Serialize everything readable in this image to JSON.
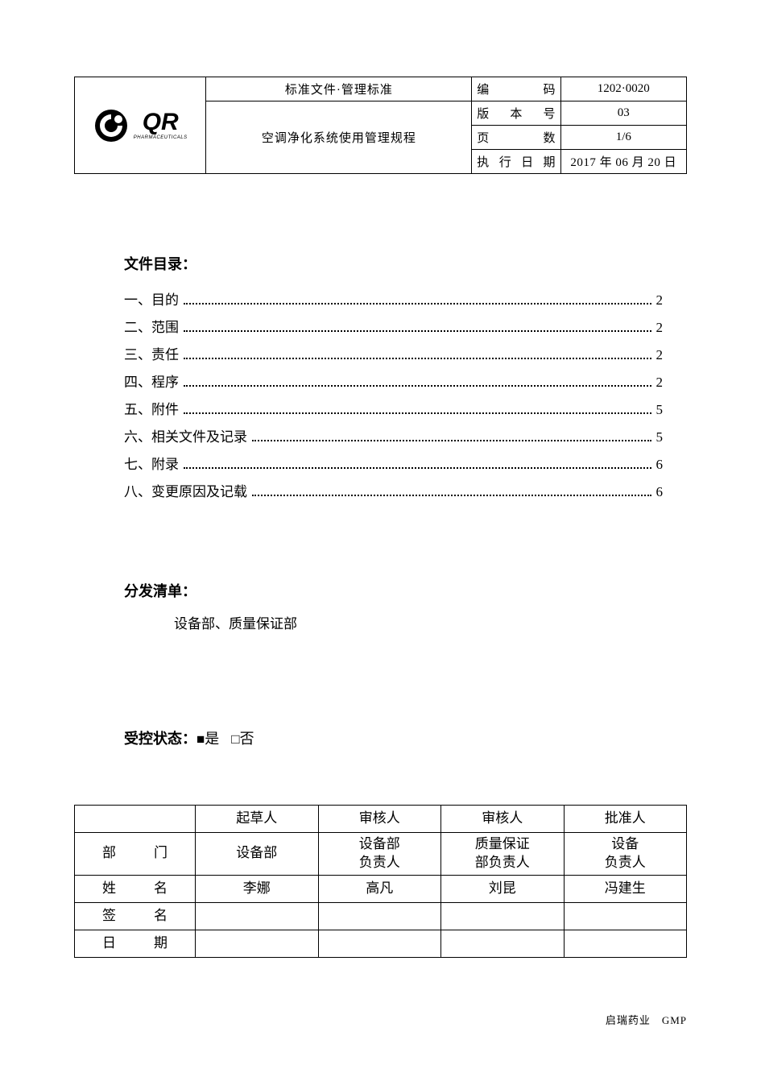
{
  "header": {
    "doc_type": "标准文件·管理标准",
    "title": "空调净化系统使用管理规程",
    "logo_text": "QR",
    "logo_sub": "PHARMACEUTICALS",
    "meta": [
      {
        "label": "编　码",
        "value": "1202·0020"
      },
      {
        "label": "版 本 号",
        "value": "03"
      },
      {
        "label": "页　数",
        "value": "1/6"
      },
      {
        "label": "执行日期",
        "value": "2017 年 06 月 20 日"
      }
    ]
  },
  "toc": {
    "heading": "文件目录：",
    "items": [
      {
        "label": "一、目的",
        "page": "2"
      },
      {
        "label": "二、范围",
        "page": "2"
      },
      {
        "label": "三、责任",
        "page": "2"
      },
      {
        "label": "四、程序",
        "page": "2"
      },
      {
        "label": "五、附件",
        "page": "5"
      },
      {
        "label": "六、相关文件及记录",
        "page": "5"
      },
      {
        "label": "七、附录",
        "page": "6"
      },
      {
        "label": "八、变更原因及记载",
        "page": "6"
      }
    ]
  },
  "distribution": {
    "heading": "分发清单：",
    "text": "设备部、质量保证部"
  },
  "controlled": {
    "label": "受控状态：",
    "yes_mark": "■",
    "yes_text": "是",
    "no_mark": "□",
    "no_text": "否"
  },
  "approval": {
    "col_headers": [
      "",
      "起草人",
      "审核人",
      "审核人",
      "批准人"
    ],
    "rows": [
      {
        "label": "部　门",
        "cells": [
          "设备部",
          "设备部\n负责人",
          "质量保证\n部负责人",
          "设备\n负责人"
        ]
      },
      {
        "label": "姓　名",
        "cells": [
          "李娜",
          "高凡",
          "刘昆",
          "冯建生"
        ]
      },
      {
        "label": "签　名",
        "cells": [
          "",
          "",
          "",
          ""
        ]
      },
      {
        "label": "日　期",
        "cells": [
          "",
          "",
          "",
          ""
        ]
      }
    ]
  },
  "footer": {
    "text": "启瑞药业　GMP"
  },
  "colors": {
    "text": "#000000",
    "border": "#000000",
    "background": "#ffffff"
  }
}
